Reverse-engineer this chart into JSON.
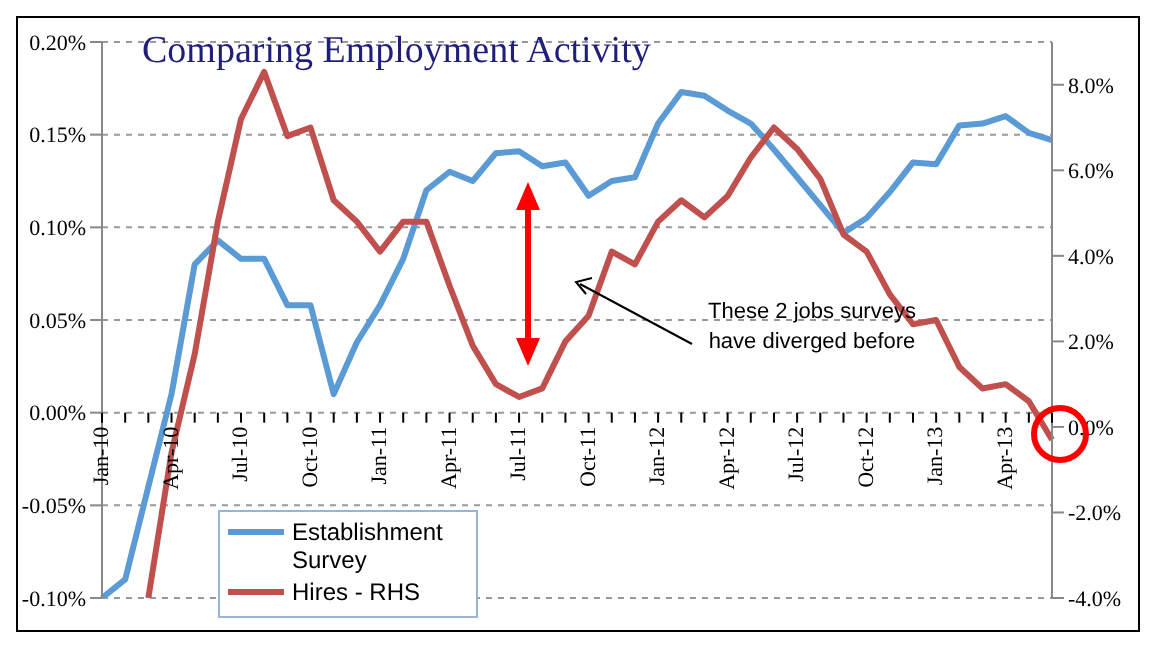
{
  "chart_data": {
    "type": "line",
    "title": "Comparing Employment Activity",
    "categories": [
      "Jan-10",
      null,
      null,
      "Apr-10",
      null,
      null,
      "Jul-10",
      null,
      null,
      "Oct-10",
      null,
      null,
      "Jan-11",
      null,
      null,
      "Apr-11",
      null,
      null,
      "Jul-11",
      null,
      null,
      "Oct-11",
      null,
      null,
      "Jan-12",
      null,
      null,
      "Apr-12",
      null,
      null,
      "Jul-12",
      null,
      null,
      "Oct-12",
      null,
      null,
      "Jan-13",
      null,
      null,
      "Apr-13",
      null,
      null
    ],
    "series": [
      {
        "name": "Establishment Survey",
        "color": "#5b9bd5",
        "values": [
          -0.1,
          -0.09,
          -0.04,
          0.01,
          0.08,
          0.093,
          0.083,
          0.083,
          0.058,
          0.058,
          0.01,
          0.038,
          0.058,
          0.083,
          0.12,
          0.13,
          0.125,
          0.14,
          0.141,
          0.133,
          0.135,
          0.117,
          0.125,
          0.127,
          0.156,
          0.173,
          0.171,
          0.163,
          0.156,
          0.142,
          0.127,
          0.112,
          0.097,
          0.105,
          0.119,
          0.135,
          0.134,
          0.155,
          0.156,
          0.16,
          0.151,
          0.147
        ]
      },
      {
        "name": "Hires - RHS",
        "color": "#c0504d",
        "axis": "y2",
        "values": [
          null,
          null,
          -4.0,
          -0.6,
          1.7,
          4.8,
          7.2,
          8.3,
          6.8,
          7.0,
          5.3,
          4.8,
          4.1,
          4.8,
          4.8,
          3.3,
          1.9,
          1.0,
          0.7,
          0.9,
          2.0,
          2.6,
          4.1,
          3.8,
          4.8,
          5.3,
          4.9,
          5.4,
          6.3,
          7.0,
          6.5,
          5.8,
          4.5,
          4.1,
          3.1,
          2.4,
          2.5,
          1.4,
          0.9,
          1.0,
          0.6,
          -0.3
        ]
      }
    ],
    "ylim": [
      -0.1,
      0.2
    ],
    "yticks": [
      {
        "value": -0.1,
        "label": "-0.10%"
      },
      {
        "value": -0.05,
        "label": "-0.05%"
      },
      {
        "value": 0,
        "label": "0.00%"
      },
      {
        "value": 0.05,
        "label": "0.05%"
      },
      {
        "value": 0.1,
        "label": "0.10%"
      },
      {
        "value": 0.15,
        "label": "0.15%"
      },
      {
        "value": 0.2,
        "label": "0.20%"
      }
    ],
    "y2lim": [
      -4,
      9
    ],
    "y2ticks": [
      {
        "value": -4,
        "label": "-4.0%"
      },
      {
        "value": -2,
        "label": "-2.0%"
      },
      {
        "value": 0,
        "label": "0.0%"
      },
      {
        "value": 2,
        "label": "2.0%"
      },
      {
        "value": 4,
        "label": "4.0%"
      },
      {
        "value": 6,
        "label": "6.0%"
      },
      {
        "value": 8,
        "label": "8.0%"
      }
    ],
    "annotations": [
      "These 2 jobs surveys have diverged before"
    ],
    "grid": "y",
    "legend": "bottom left",
    "marker": "none",
    "line_style": "solid"
  }
}
